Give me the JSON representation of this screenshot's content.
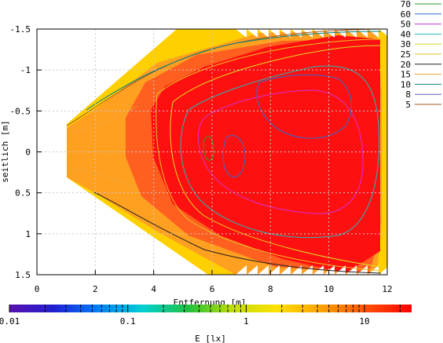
{
  "chart_data": {
    "type": "heatmap",
    "title": "",
    "xlabel": "Entfernung [m]",
    "ylabel": "seitlich [m]",
    "xlim": [
      0,
      12
    ],
    "ylim": [
      1.5,
      -1.5
    ],
    "x_ticks": [
      "0",
      "2",
      "4",
      "6",
      "8",
      "10",
      "12"
    ],
    "y_ticks": [
      "-1.5",
      "-1",
      "-0.5",
      "0",
      "0.5",
      "1",
      "1.5"
    ],
    "grid": true,
    "legend_position": "top-right",
    "contour_levels": [
      {
        "label": "70",
        "value": 70,
        "color": "#2a9a2a"
      },
      {
        "label": "60",
        "value": 60,
        "color": "#2f6ad0"
      },
      {
        "label": "50",
        "value": 50,
        "color": "#d030d0"
      },
      {
        "label": "40",
        "value": 40,
        "color": "#22b8b8"
      },
      {
        "label": "30",
        "value": 30,
        "color": "#d8d820"
      },
      {
        "label": "25",
        "value": 25,
        "color": "#e8c020"
      },
      {
        "label": "20",
        "value": 20,
        "color": "#202020"
      },
      {
        "label": "15",
        "value": 15,
        "color": "#f0a030"
      },
      {
        "label": "10",
        "value": 10,
        "color": "#008080"
      },
      {
        "label": "8",
        "value": 8,
        "color": "#6060c0"
      },
      {
        "label": "5",
        "value": 5,
        "color": "#a05a20"
      }
    ],
    "colorbar": {
      "label": "E [lx]",
      "scale": "log",
      "range": [
        0.01,
        25
      ],
      "ticks": [
        "0.01",
        "0.1",
        "1",
        "10"
      ],
      "colors": [
        "#5a10b0",
        "#2020d0",
        "#0080ff",
        "#00d0d0",
        "#20c040",
        "#c0e000",
        "#ffe000",
        "#ffa000",
        "#ff5000",
        "#ff0000"
      ]
    },
    "field_colors": {
      "outer": "#ffd000",
      "band": "#ffa020",
      "mid": "#ff6020",
      "core": "#ff1010"
    }
  }
}
